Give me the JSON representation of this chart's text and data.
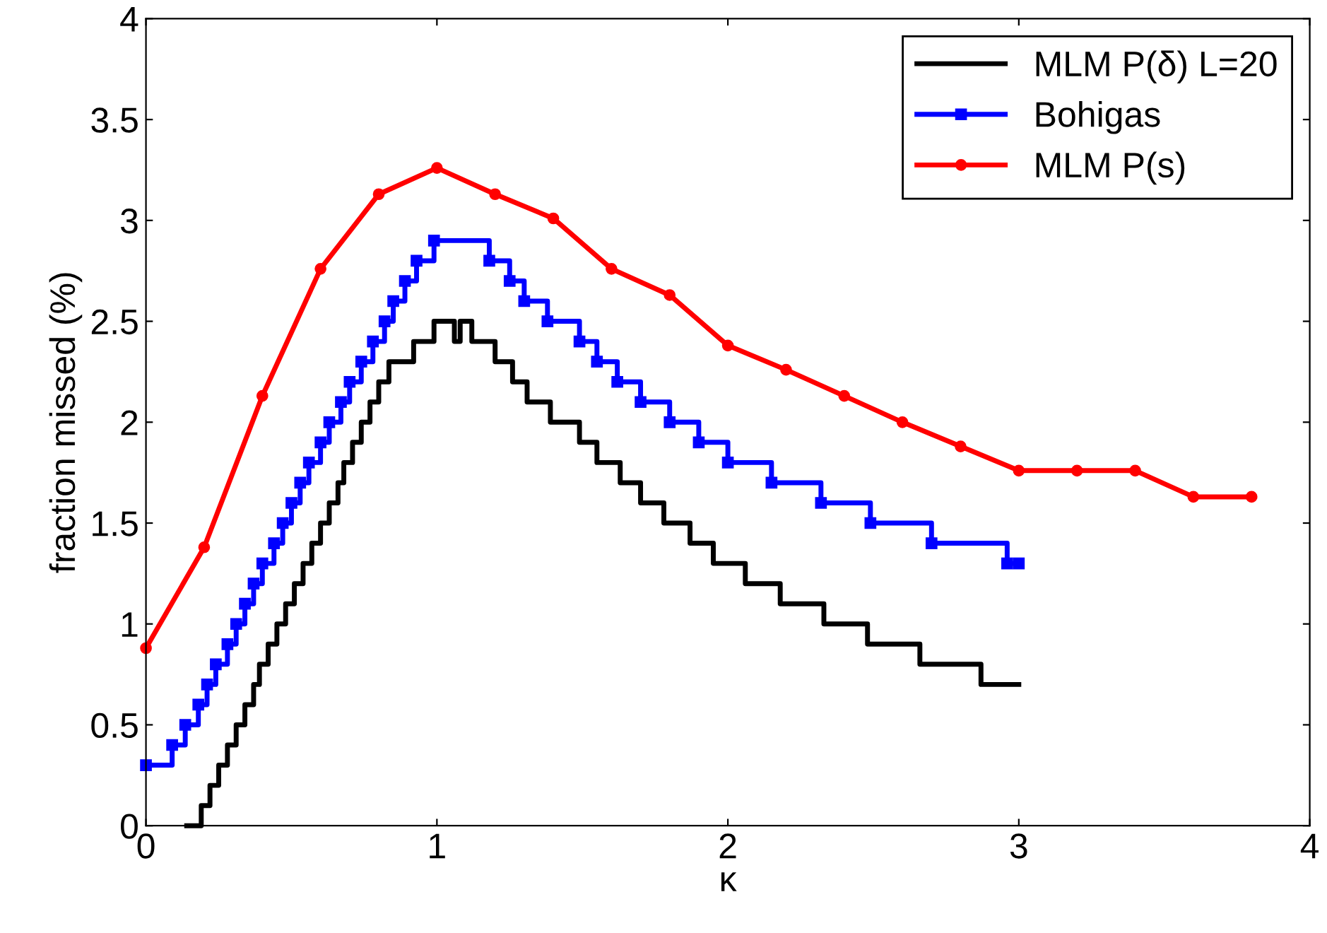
{
  "chart_data": {
    "type": "line",
    "xlabel": "κ",
    "ylabel": "fraction missed (%)",
    "xlim": [
      0,
      4
    ],
    "ylim": [
      0,
      4
    ],
    "xticks": [
      0,
      1,
      2,
      3,
      4
    ],
    "yticks": [
      0,
      0.5,
      1,
      1.5,
      2,
      2.5,
      3,
      3.5,
      4
    ],
    "grid": false,
    "legend": "top right",
    "series": [
      {
        "name": "MLM P(δ) L=20",
        "type": "step",
        "color": "#000000",
        "marker": "none",
        "x": [
          0.14,
          0.19,
          0.22,
          0.25,
          0.28,
          0.31,
          0.34,
          0.37,
          0.39,
          0.42,
          0.45,
          0.48,
          0.51,
          0.54,
          0.57,
          0.6,
          0.63,
          0.66,
          0.68,
          0.71,
          0.74,
          0.77,
          0.8,
          0.835,
          0.92,
          0.99,
          1.06,
          1.08,
          1.12,
          1.2,
          1.26,
          1.31,
          1.39,
          1.49,
          1.55,
          1.63,
          1.7,
          1.78,
          1.87,
          1.95,
          2.06,
          2.18,
          2.33,
          2.48,
          2.66,
          2.87,
          3.0
        ],
        "values": [
          0,
          0.1,
          0.2,
          0.3,
          0.4,
          0.5,
          0.6,
          0.7,
          0.8,
          0.9,
          1.0,
          1.1,
          1.2,
          1.3,
          1.4,
          1.5,
          1.6,
          1.7,
          1.8,
          1.9,
          2.0,
          2.1,
          2.2,
          2.3,
          2.4,
          2.5,
          2.4,
          2.5,
          2.4,
          2.3,
          2.2,
          2.1,
          2.0,
          1.9,
          1.8,
          1.7,
          1.6,
          1.5,
          1.4,
          1.3,
          1.2,
          1.1,
          1.0,
          0.9,
          0.8,
          0.7,
          0.7
        ]
      },
      {
        "name": "Bohigas",
        "type": "step",
        "color": "#0000ff",
        "marker": "square",
        "x": [
          0,
          0.09,
          0.135,
          0.18,
          0.21,
          0.24,
          0.28,
          0.31,
          0.34,
          0.37,
          0.4,
          0.44,
          0.47,
          0.5,
          0.53,
          0.56,
          0.6,
          0.63,
          0.67,
          0.7,
          0.74,
          0.78,
          0.82,
          0.85,
          0.89,
          0.93,
          0.99,
          1.18,
          1.25,
          1.3,
          1.38,
          1.49,
          1.55,
          1.62,
          1.7,
          1.8,
          1.9,
          2.0,
          2.15,
          2.32,
          2.49,
          2.7,
          2.96,
          3.0
        ],
        "values": [
          0.3,
          0.4,
          0.5,
          0.6,
          0.7,
          0.8,
          0.9,
          1.0,
          1.1,
          1.2,
          1.3,
          1.4,
          1.5,
          1.6,
          1.7,
          1.8,
          1.9,
          2.0,
          2.1,
          2.2,
          2.3,
          2.4,
          2.5,
          2.6,
          2.7,
          2.8,
          2.9,
          2.8,
          2.7,
          2.6,
          2.5,
          2.4,
          2.3,
          2.2,
          2.1,
          2.0,
          1.9,
          1.8,
          1.7,
          1.6,
          1.5,
          1.4,
          1.3,
          1.3
        ]
      },
      {
        "name": "MLM P(s)",
        "color": "#ff0000",
        "marker": "circle",
        "x": [
          0,
          0.2,
          0.4,
          0.6,
          0.8,
          1.0,
          1.2,
          1.4,
          1.6,
          1.8,
          2.0,
          2.2,
          2.4,
          2.6,
          2.8,
          3.0,
          3.2,
          3.4,
          3.6,
          3.8
        ],
        "values": [
          0.88,
          1.38,
          2.13,
          2.76,
          3.13,
          3.26,
          3.13,
          3.01,
          2.76,
          2.63,
          2.38,
          2.26,
          2.13,
          2.0,
          1.88,
          1.76,
          1.76,
          1.76,
          1.63,
          1.63
        ]
      }
    ]
  }
}
